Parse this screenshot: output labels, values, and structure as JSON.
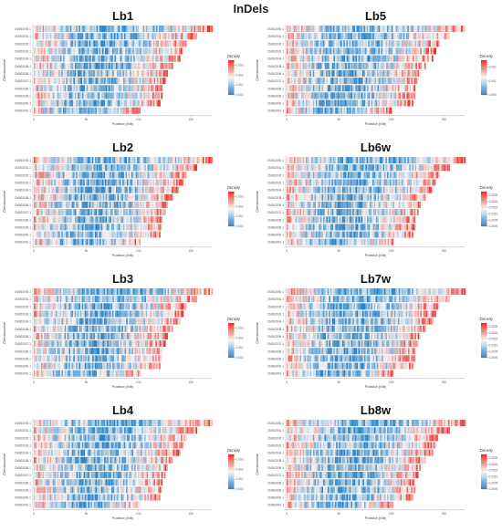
{
  "figure_title": "InDels",
  "colors": {
    "low": "#2b83c6",
    "mid": "#f7f4f2",
    "high": "#e8302a"
  },
  "chart_data": [
    {
      "type": "heatmap",
      "title": "Lb1",
      "xlabel": "Position (Mb)",
      "ylabel": "Chromosome",
      "categories": [
        "CM002030.1",
        "CM002031.1",
        "CM002032.1",
        "CM002033.1",
        "CM002034.1",
        "CM002035.1",
        "CM002036.1",
        "CM002037.1",
        "CM002038.1",
        "CM002039.1",
        "CM002040.1",
        "CM002041.1"
      ],
      "lengths_mb": [
        171,
        156,
        146,
        143,
        140,
        133,
        128,
        126,
        123,
        123,
        121,
        102
      ],
      "xticks": [
        "0",
        "50",
        "100",
        "150"
      ],
      "legend_title": "Density",
      "legend_ticks": [
        "0.003",
        "0.002",
        "0.001",
        "0.000"
      ],
      "legend_vmax": 0.0035
    },
    {
      "type": "heatmap",
      "title": "Lb5",
      "xlabel": "Position (Mb)",
      "ylabel": "Chromosome",
      "categories": [
        "CM002030.1",
        "CM002031.1",
        "CM002032.1",
        "CM002033.1",
        "CM002034.1",
        "CM002035.1",
        "CM002036.1",
        "CM002037.1",
        "CM002038.1",
        "CM002039.1",
        "CM002040.1",
        "CM002041.1"
      ],
      "lengths_mb": [
        171,
        156,
        146,
        143,
        140,
        133,
        128,
        126,
        123,
        123,
        121,
        102
      ],
      "xticks": [
        "0",
        "50",
        "100",
        "150"
      ],
      "legend_title": "Density",
      "legend_ticks": [
        "0.002",
        "0.001",
        "0.000"
      ],
      "legend_vmax": 0.0025
    },
    {
      "type": "heatmap",
      "title": "Lb2",
      "xlabel": "Position (Mb)",
      "ylabel": "Chromosome",
      "categories": [
        "CM002030.1",
        "CM002031.1",
        "CM002032.1",
        "CM002033.1",
        "CM002034.1",
        "CM002035.1",
        "CM002036.1",
        "CM002037.1",
        "CM002038.1",
        "CM002039.1",
        "CM002040.1",
        "CM002041.1"
      ],
      "lengths_mb": [
        171,
        156,
        146,
        143,
        140,
        133,
        128,
        126,
        123,
        123,
        121,
        102
      ],
      "xticks": [
        "0",
        "50",
        "100",
        "150"
      ],
      "legend_title": "Density",
      "legend_ticks": [
        "0.003",
        "0.002",
        "0.001",
        "0.000"
      ],
      "legend_vmax": 0.0035
    },
    {
      "type": "heatmap",
      "title": "Lb6w",
      "xlabel": "Position (Mb)",
      "ylabel": "Chromosome",
      "categories": [
        "CM002030.1",
        "CM002031.1",
        "CM002032.1",
        "CM002033.1",
        "CM002034.1",
        "CM002035.1",
        "CM002036.1",
        "CM002037.1",
        "CM002038.1",
        "CM002039.1",
        "CM002040.1",
        "CM002041.1"
      ],
      "lengths_mb": [
        171,
        156,
        146,
        143,
        140,
        133,
        128,
        126,
        123,
        123,
        121,
        102
      ],
      "xticks": [
        "0",
        "50",
        "100",
        "150"
      ],
      "legend_title": "Density",
      "legend_ticks": [
        "0.0025",
        "0.0020",
        "0.0015",
        "0.0010",
        "0.0005",
        "0.0000"
      ],
      "legend_vmax": 0.0028
    },
    {
      "type": "heatmap",
      "title": "Lb3",
      "xlabel": "Position (Mb)",
      "ylabel": "Chromosome",
      "categories": [
        "CM002030.1",
        "CM002031.1",
        "CM002032.1",
        "CM002033.1",
        "CM002034.1",
        "CM002035.1",
        "CM002036.1",
        "CM002037.1",
        "CM002038.1",
        "CM002039.1",
        "CM002040.1",
        "CM002041.1"
      ],
      "lengths_mb": [
        171,
        156,
        146,
        143,
        140,
        133,
        128,
        126,
        123,
        123,
        121,
        102
      ],
      "xticks": [
        "0",
        "50",
        "100",
        "150"
      ],
      "legend_title": "Density",
      "legend_ticks": [
        "0.003",
        "0.002",
        "0.001",
        "0.000"
      ],
      "legend_vmax": 0.0035
    },
    {
      "type": "heatmap",
      "title": "Lb7w",
      "xlabel": "Position (Mb)",
      "ylabel": "Chromosome",
      "categories": [
        "CM002030.1",
        "CM002031.1",
        "CM002032.1",
        "CM002033.1",
        "CM002034.1",
        "CM002035.1",
        "CM002036.1",
        "CM002037.1",
        "CM002038.1",
        "CM002039.1",
        "CM002040.1",
        "CM002041.1"
      ],
      "lengths_mb": [
        171,
        156,
        146,
        143,
        140,
        133,
        128,
        126,
        123,
        123,
        121,
        102
      ],
      "xticks": [
        "0",
        "50",
        "100",
        "150"
      ],
      "legend_title": "Density",
      "legend_ticks": [
        "0.0025",
        "0.0020",
        "0.0015",
        "0.0010",
        "0.0005",
        "0.0000"
      ],
      "legend_vmax": 0.0028
    },
    {
      "type": "heatmap",
      "title": "Lb4",
      "xlabel": "Position (Mb)",
      "ylabel": "Chromosome",
      "categories": [
        "CM002030.1",
        "CM002031.1",
        "CM002032.1",
        "CM002033.1",
        "CM002034.1",
        "CM002035.1",
        "CM002036.1",
        "CM002037.1",
        "CM002038.1",
        "CM002039.1",
        "CM002040.1",
        "CM002041.1"
      ],
      "lengths_mb": [
        171,
        156,
        146,
        143,
        140,
        133,
        128,
        126,
        123,
        123,
        121,
        102
      ],
      "xticks": [
        "0",
        "50",
        "100",
        "150"
      ],
      "legend_title": "Density",
      "legend_ticks": [
        "0.003",
        "0.002",
        "0.001",
        "0.000"
      ],
      "legend_vmax": 0.0035
    },
    {
      "type": "heatmap",
      "title": "Lb8w",
      "xlabel": "Position (Mb)",
      "ylabel": "Chromosome",
      "categories": [
        "CM002030.1",
        "CM002031.1",
        "CM002032.1",
        "CM002033.1",
        "CM002034.1",
        "CM002035.1",
        "CM002036.1",
        "CM002037.1",
        "CM002038.1",
        "CM002039.1",
        "CM002040.1",
        "CM002041.1"
      ],
      "lengths_mb": [
        171,
        156,
        146,
        143,
        140,
        133,
        128,
        126,
        123,
        123,
        121,
        102
      ],
      "xticks": [
        "0",
        "50",
        "100",
        "150"
      ],
      "legend_title": "Density",
      "legend_ticks": [
        "0.0025",
        "0.0020",
        "0.0015",
        "0.0010",
        "0.0005",
        "0.0000"
      ],
      "legend_vmax": 0.0028
    }
  ]
}
